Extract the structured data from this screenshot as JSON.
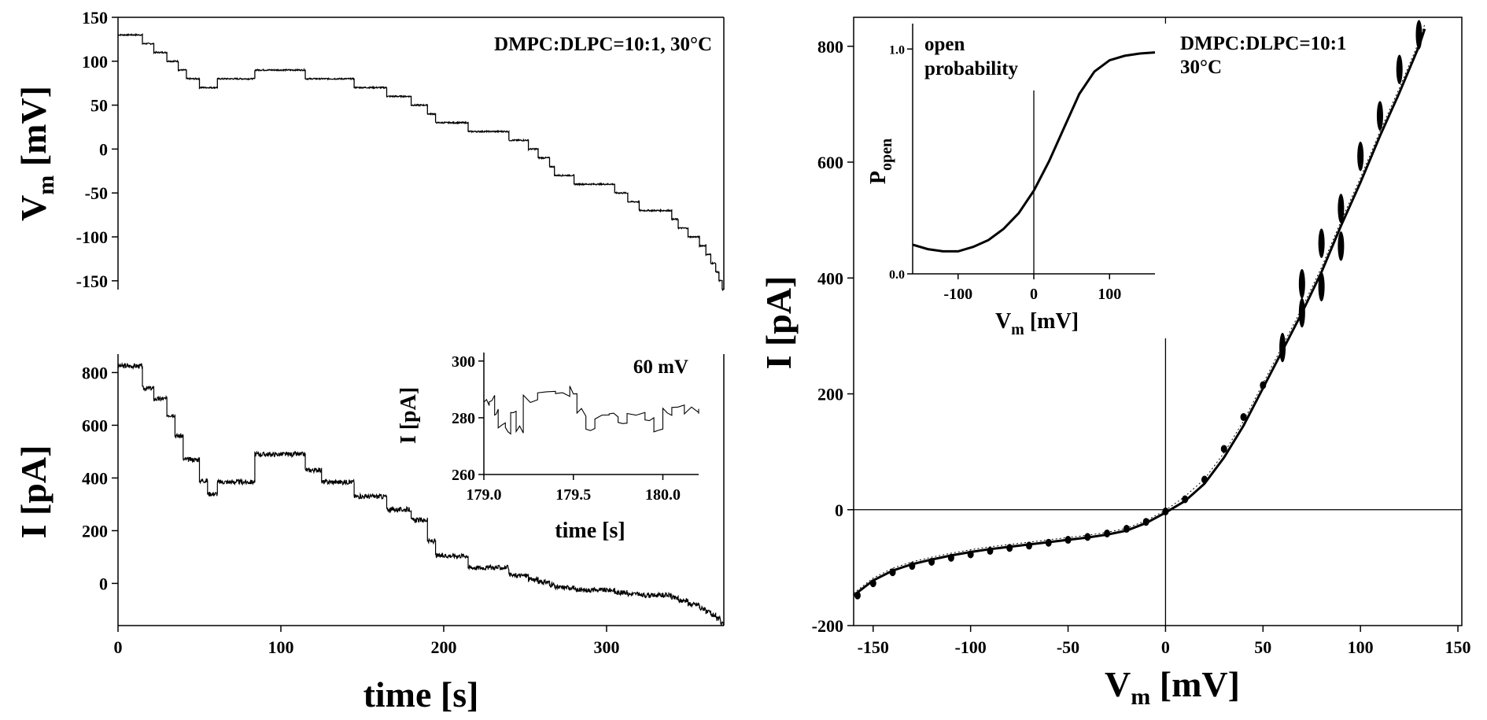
{
  "chart_data": [
    {
      "type": "line",
      "panel": "top-left",
      "annotation": "DMPC:DLPC=10:1,  30°C",
      "ylabel": {
        "main": "V",
        "sub": "m",
        "unit": " [mV]"
      },
      "xlim": [
        0,
        372
      ],
      "ylim": [
        -160,
        150
      ],
      "yticks": [
        150,
        100,
        50,
        0,
        -50,
        -100,
        -150
      ],
      "grid": false,
      "series": [
        {
          "steps": [
            [
              0,
              130
            ],
            [
              15,
              120
            ],
            [
              22,
              110
            ],
            [
              30,
              100
            ],
            [
              37,
              90
            ],
            [
              42,
              80
            ],
            [
              50,
              70
            ],
            [
              61,
              80
            ],
            [
              84,
              90
            ],
            [
              115,
              80
            ],
            [
              145,
              70
            ],
            [
              165,
              60
            ],
            [
              180,
              50
            ],
            [
              190,
              40
            ],
            [
              195,
              30
            ],
            [
              215,
              20
            ],
            [
              240,
              10
            ],
            [
              252,
              0
            ],
            [
              258,
              -10
            ],
            [
              265,
              -20
            ],
            [
              268,
              -30
            ],
            [
              280,
              -40
            ],
            [
              305,
              -50
            ],
            [
              313,
              -60
            ],
            [
              320,
              -70
            ],
            [
              340,
              -80
            ],
            [
              344,
              -90
            ],
            [
              350,
              -100
            ],
            [
              357,
              -110
            ],
            [
              361,
              -120
            ],
            [
              364,
              -130
            ],
            [
              367,
              -140
            ],
            [
              369,
              -150
            ],
            [
              371,
              -160
            ]
          ]
        }
      ]
    },
    {
      "type": "line",
      "panel": "bottom-left",
      "xlabel": "time [s]",
      "ylabel": "I [pA]",
      "xlim": [
        0,
        372
      ],
      "ylim": [
        -160,
        870
      ],
      "xticks": [
        0,
        100,
        200,
        300
      ],
      "yticks": [
        800,
        600,
        400,
        200,
        0
      ],
      "grid": false,
      "series": [
        {
          "steps": [
            [
              0,
              825
            ],
            [
              15,
              740
            ],
            [
              22,
              700
            ],
            [
              30,
              640
            ],
            [
              35,
              560
            ],
            [
              40,
              470
            ],
            [
              50,
              390
            ],
            [
              55,
              340
            ],
            [
              61,
              385
            ],
            [
              84,
              490
            ],
            [
              115,
              430
            ],
            [
              125,
              385
            ],
            [
              145,
              330
            ],
            [
              165,
              280
            ],
            [
              180,
              240
            ],
            [
              190,
              160
            ],
            [
              195,
              105
            ],
            [
              215,
              60
            ],
            [
              240,
              30
            ],
            [
              252,
              15
            ],
            [
              258,
              5
            ],
            [
              265,
              -5
            ],
            [
              268,
              -15
            ],
            [
              280,
              -25
            ],
            [
              305,
              -35
            ],
            [
              313,
              -40
            ],
            [
              320,
              -45
            ],
            [
              340,
              -55
            ],
            [
              344,
              -65
            ],
            [
              350,
              -80
            ],
            [
              357,
              -95
            ],
            [
              361,
              -110
            ],
            [
              364,
              -120
            ],
            [
              367,
              -135
            ],
            [
              370,
              -155
            ]
          ]
        }
      ],
      "inset": {
        "type": "line",
        "annotation": "60 mV",
        "xlabel": "time [s]",
        "ylabel": "I [pA]",
        "xlim": [
          179.0,
          180.2
        ],
        "ylim": [
          260,
          303
        ],
        "xticks": [
          "179.0",
          "179.5",
          "180.0"
        ],
        "yticks": [
          300,
          280,
          260
        ],
        "series": [
          {
            "steps": [
              [
                179.0,
                285
              ],
              [
                179.03,
                287
              ],
              [
                179.06,
                282
              ],
              [
                179.08,
                277
              ],
              [
                179.12,
                275
              ],
              [
                179.15,
                282
              ],
              [
                179.18,
                276
              ],
              [
                179.22,
                287
              ],
              [
                179.3,
                289
              ],
              [
                179.4,
                288
              ],
              [
                179.48,
                290
              ],
              [
                179.52,
                282
              ],
              [
                179.57,
                275
              ],
              [
                179.62,
                280
              ],
              [
                179.7,
                281
              ],
              [
                179.75,
                277
              ],
              [
                179.8,
                281
              ],
              [
                179.9,
                280
              ],
              [
                179.95,
                276
              ],
              [
                180.0,
                282
              ],
              [
                180.05,
                283
              ],
              [
                180.12,
                283
              ],
              [
                180.2,
                282
              ]
            ]
          }
        ]
      }
    },
    {
      "type": "scatter",
      "panel": "right",
      "annotation": [
        "DMPC:DLPC=10:1",
        "30°C"
      ],
      "xlabel": {
        "main": "V",
        "sub": "m",
        "unit": " [mV]"
      },
      "ylabel": "I [pA]",
      "xlim": [
        -160,
        152
      ],
      "ylim": [
        -200,
        850
      ],
      "xticks": [
        -150,
        -100,
        -50,
        0,
        50,
        100,
        150
      ],
      "yticks": [
        800,
        600,
        400,
        200,
        0,
        -200
      ],
      "grid": false,
      "series": [
        {
          "kind": "points",
          "points": [
            [
              -158,
              -148
            ],
            [
              -150,
              -127
            ],
            [
              -140,
              -108
            ],
            [
              -130,
              -97
            ],
            [
              -120,
              -90
            ],
            [
              -110,
              -83
            ],
            [
              -100,
              -77
            ],
            [
              -90,
              -71
            ],
            [
              -80,
              -66
            ],
            [
              -70,
              -62
            ],
            [
              -60,
              -57
            ],
            [
              -50,
              -52
            ],
            [
              -40,
              -47
            ],
            [
              -30,
              -41
            ],
            [
              -20,
              -33
            ],
            [
              -10,
              -21
            ],
            [
              0,
              -3
            ],
            [
              10,
              18
            ],
            [
              20,
              52
            ],
            [
              30,
              105
            ],
            [
              40,
              160
            ],
            [
              50,
              215
            ],
            [
              60,
              280
            ],
            [
              70,
              340
            ],
            [
              70,
              390
            ],
            [
              80,
              385
            ],
            [
              80,
              460
            ],
            [
              90,
              455
            ],
            [
              90,
              520
            ],
            [
              100,
              610
            ],
            [
              110,
              680
            ],
            [
              120,
              760
            ],
            [
              130,
              820
            ]
          ]
        },
        {
          "kind": "fit",
          "points": [
            [
              -160,
              -148
            ],
            [
              -150,
              -122
            ],
            [
              -140,
              -105
            ],
            [
              -130,
              -94
            ],
            [
              -120,
              -86
            ],
            [
              -110,
              -79
            ],
            [
              -100,
              -73
            ],
            [
              -90,
              -68
            ],
            [
              -80,
              -64
            ],
            [
              -70,
              -60
            ],
            [
              -60,
              -56
            ],
            [
              -50,
              -52
            ],
            [
              -40,
              -48
            ],
            [
              -30,
              -43
            ],
            [
              -20,
              -36
            ],
            [
              -10,
              -23
            ],
            [
              0,
              -5
            ],
            [
              10,
              15
            ],
            [
              20,
              45
            ],
            [
              30,
              90
            ],
            [
              40,
              145
            ],
            [
              50,
              210
            ],
            [
              60,
              275
            ],
            [
              70,
              340
            ],
            [
              80,
              410
            ],
            [
              90,
              490
            ],
            [
              100,
              565
            ],
            [
              110,
              645
            ],
            [
              120,
              720
            ],
            [
              130,
              800
            ],
            [
              133,
              830
            ]
          ]
        }
      ],
      "inset": {
        "type": "line",
        "annotation": [
          "open",
          "probability"
        ],
        "xlabel": {
          "main": "V",
          "sub": "m",
          "unit": " [mV]"
        },
        "ylabel": {
          "main": "P",
          "sub": "open"
        },
        "xlim": [
          -160,
          160
        ],
        "ylim": [
          0,
          1.05
        ],
        "xticks": [
          -100,
          0,
          100
        ],
        "yticks": [
          "1.0",
          "0.0"
        ],
        "series": [
          {
            "points": [
              [
                -160,
                0.13
              ],
              [
                -140,
                0.11
              ],
              [
                -120,
                0.1
              ],
              [
                -100,
                0.1
              ],
              [
                -80,
                0.12
              ],
              [
                -60,
                0.15
              ],
              [
                -40,
                0.2
              ],
              [
                -20,
                0.27
              ],
              [
                0,
                0.37
              ],
              [
                20,
                0.5
              ],
              [
                40,
                0.65
              ],
              [
                60,
                0.8
              ],
              [
                80,
                0.9
              ],
              [
                100,
                0.95
              ],
              [
                120,
                0.97
              ],
              [
                140,
                0.98
              ],
              [
                160,
                0.985
              ]
            ]
          }
        ]
      }
    }
  ]
}
